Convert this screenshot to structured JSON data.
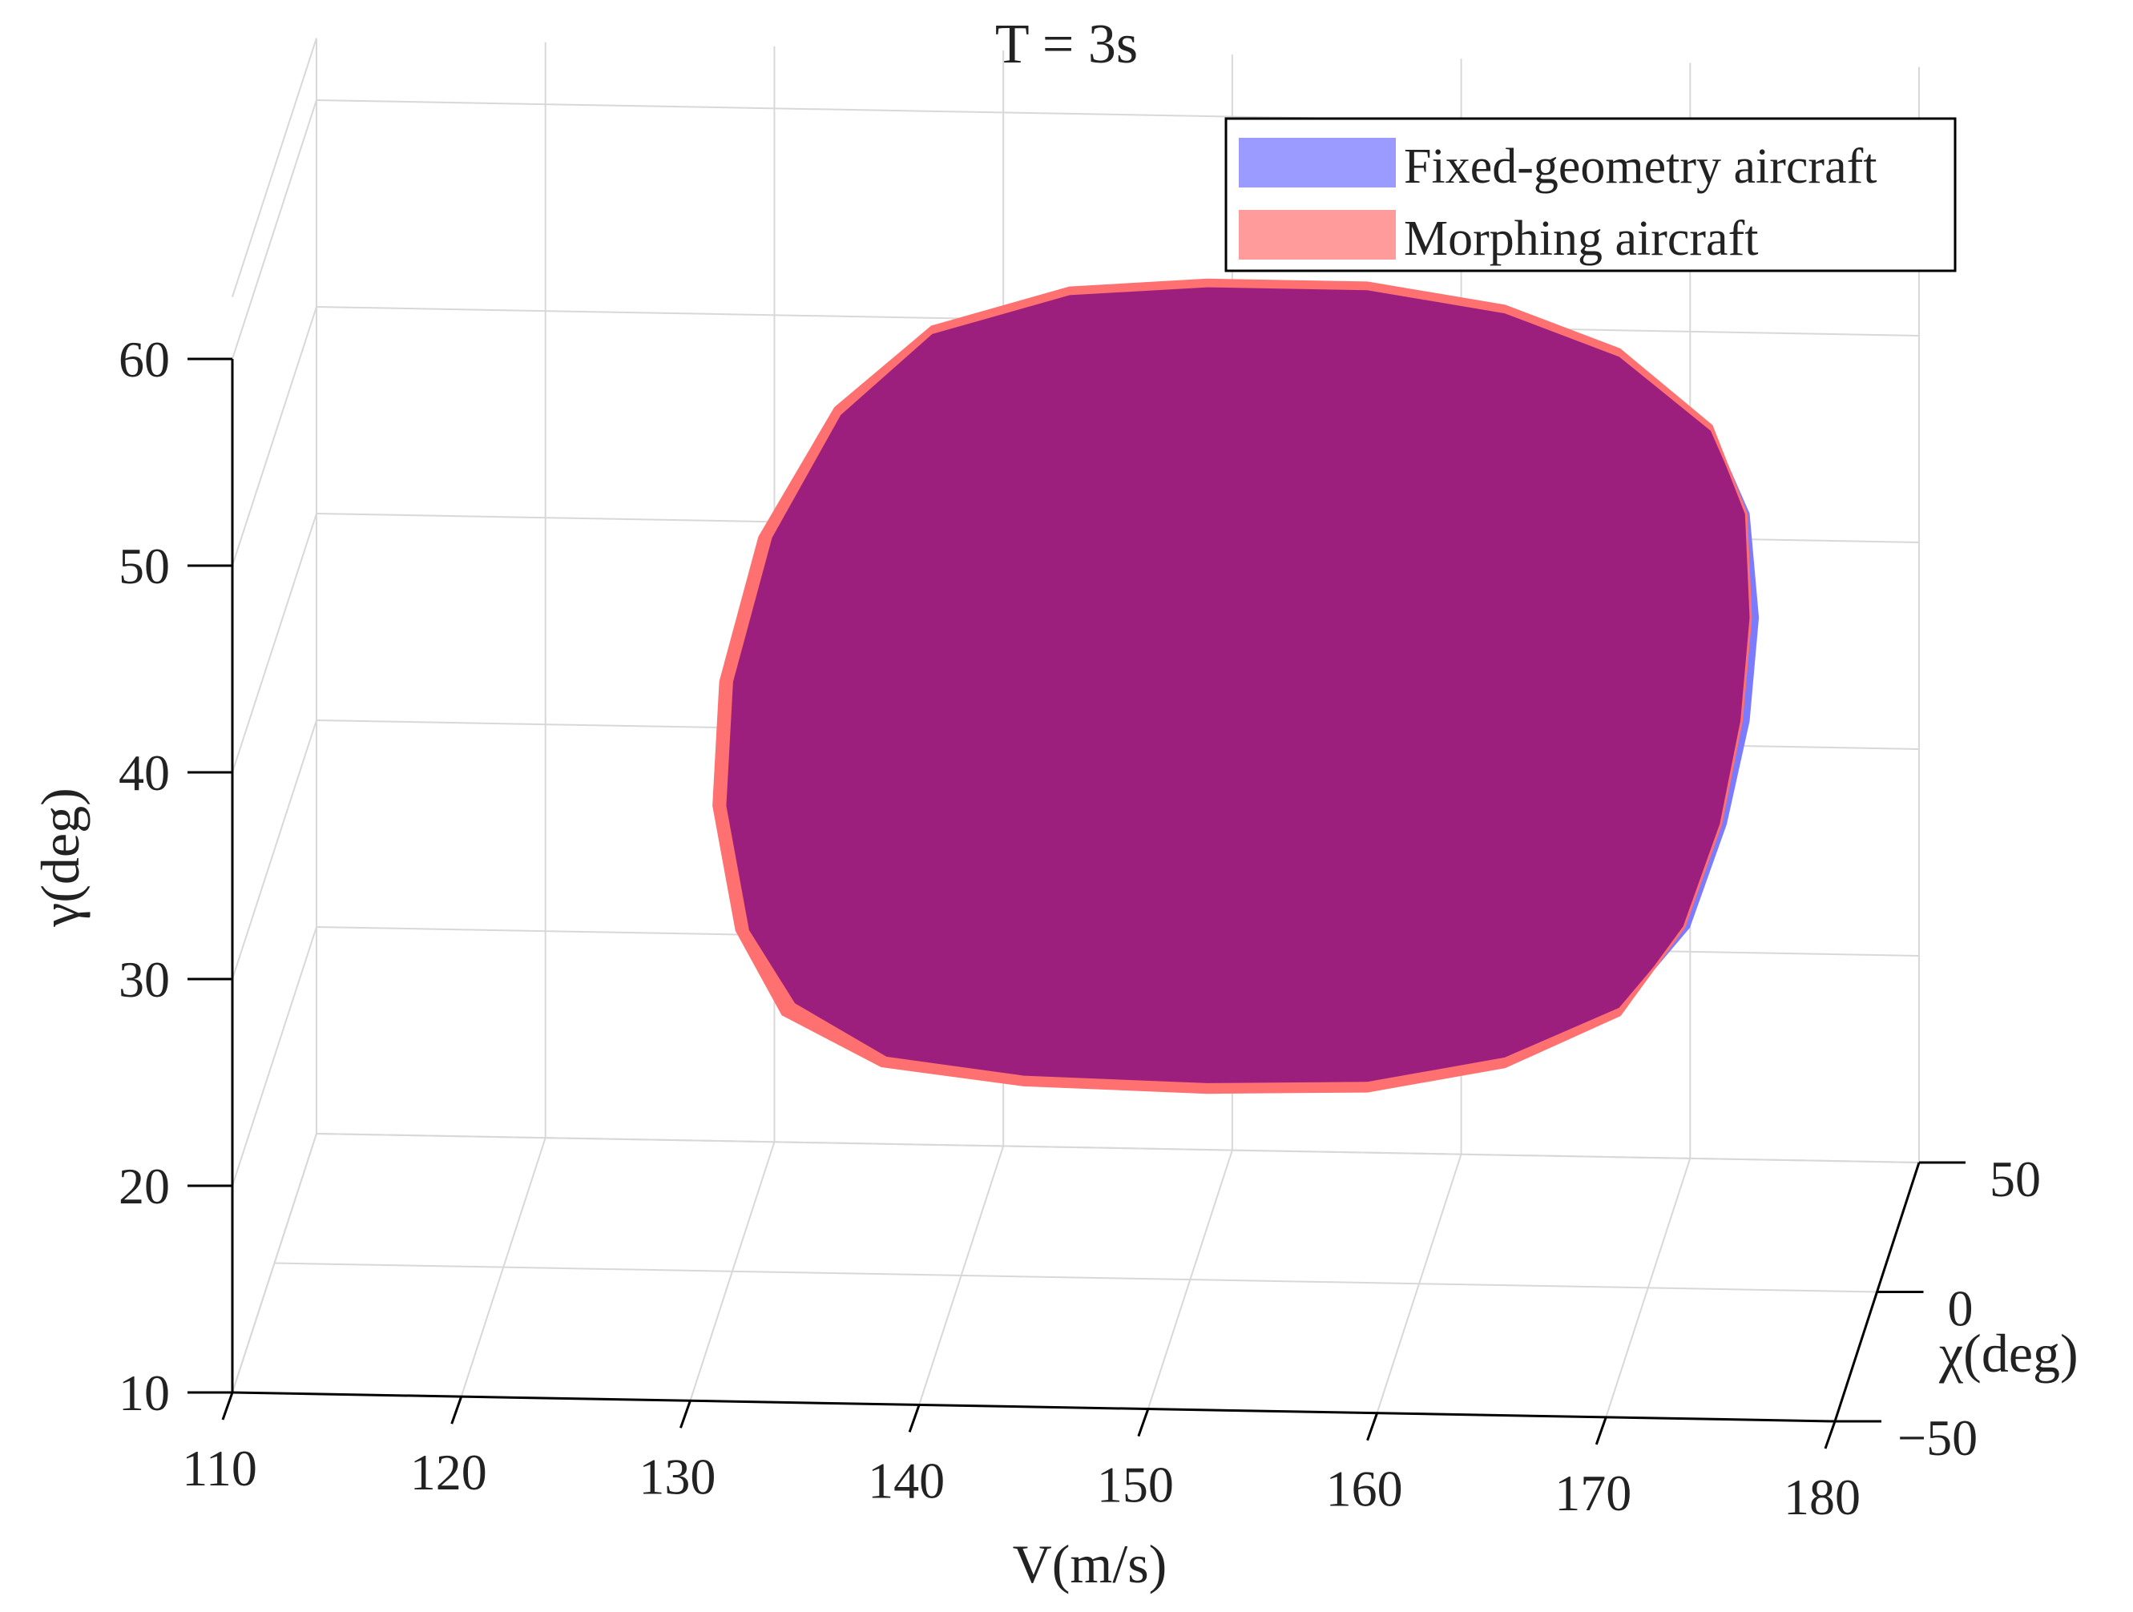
{
  "chart_data": {
    "type": "area",
    "title": "T = 3s",
    "xlabel": "V(m/s)",
    "ylabel": "γ(deg)",
    "zlabel": "χ(deg)",
    "x_ticks": [
      "110",
      "120",
      "130",
      "140",
      "150",
      "160",
      "170",
      "180"
    ],
    "y_ticks": [
      "10",
      "20",
      "30",
      "40",
      "50",
      "60"
    ],
    "z_ticks": [
      "−50",
      "0",
      "50"
    ],
    "xlim": [
      110,
      180
    ],
    "ylim": [
      10,
      60
    ],
    "zlim": [
      -50,
      50
    ],
    "grid": true,
    "legend_position": "top-right",
    "series": [
      {
        "name": "Fixed-geometry aircraft",
        "color": "#7b7bff",
        "outline": [
          [
            131,
            43
          ],
          [
            134,
            49
          ],
          [
            138,
            53
          ],
          [
            144,
            55
          ],
          [
            150,
            55.5
          ],
          [
            157,
            55.5
          ],
          [
            163,
            54.5
          ],
          [
            168,
            52.5
          ],
          [
            172,
            49
          ],
          [
            173.6,
            45
          ],
          [
            174,
            40
          ],
          [
            173.6,
            35
          ],
          [
            172.6,
            30
          ],
          [
            171,
            25
          ],
          [
            168,
            21
          ],
          [
            163,
            18.5
          ],
          [
            157,
            17.2
          ],
          [
            150,
            17
          ],
          [
            142,
            17.2
          ],
          [
            136,
            18
          ],
          [
            132,
            20.5
          ],
          [
            130,
            24
          ],
          [
            129,
            30
          ],
          [
            129.3,
            36
          ]
        ]
      },
      {
        "name": "Morphing aircraft",
        "color": "#ff7070",
        "outline": [
          [
            130.5,
            43
          ],
          [
            133.8,
            49.3
          ],
          [
            138,
            53.3
          ],
          [
            144,
            55.3
          ],
          [
            150,
            55.8
          ],
          [
            157,
            55.8
          ],
          [
            163,
            54.8
          ],
          [
            168,
            52.8
          ],
          [
            172,
            49.2
          ],
          [
            173.5,
            45
          ],
          [
            173.7,
            40
          ],
          [
            173.3,
            35
          ],
          [
            172.4,
            30
          ],
          [
            170.8,
            25
          ],
          [
            168,
            20.7
          ],
          [
            163,
            18.1
          ],
          [
            157,
            16.8
          ],
          [
            150,
            16.6
          ],
          [
            142,
            16.8
          ],
          [
            135.8,
            17.6
          ],
          [
            131.5,
            20
          ],
          [
            129.5,
            24
          ],
          [
            128.5,
            30
          ],
          [
            128.8,
            36
          ]
        ]
      }
    ]
  },
  "legend": {
    "items": [
      {
        "label": "Fixed-geometry aircraft",
        "color": "#9b9bff"
      },
      {
        "label": "Morphing aircraft",
        "color": "#ff9b9b"
      }
    ]
  },
  "overlap_color": "#9c1f7d"
}
